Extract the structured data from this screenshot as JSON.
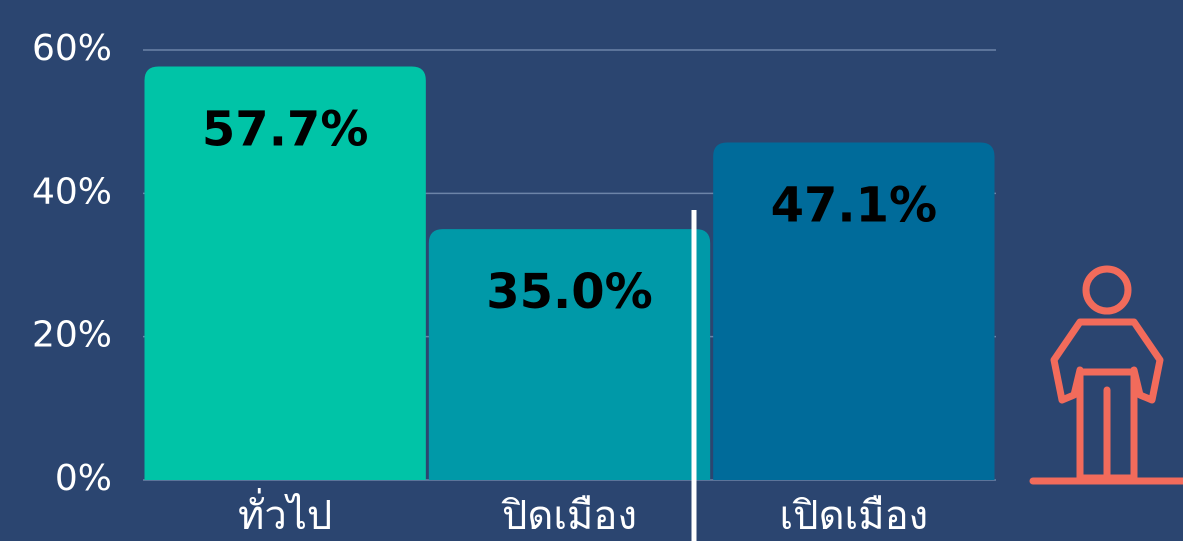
{
  "chart_data": {
    "type": "bar",
    "categories": [
      "ทั่วไป",
      "ปิดเมือง",
      "เปิดเมือง"
    ],
    "values": [
      57.7,
      35.0,
      47.1
    ],
    "value_labels": [
      "57.7%",
      "35.0%",
      "47.1%"
    ],
    "colors": [
      "#00c4a7",
      "#0099a8",
      "#006b9a"
    ],
    "ylim": [
      0,
      60
    ],
    "yticks": [
      {
        "value": 0,
        "label": "0%"
      },
      {
        "value": 20,
        "label": "20%"
      },
      {
        "value": 40,
        "label": "40%"
      },
      {
        "value": 60,
        "label": "60%"
      }
    ],
    "grid": true
  }
}
